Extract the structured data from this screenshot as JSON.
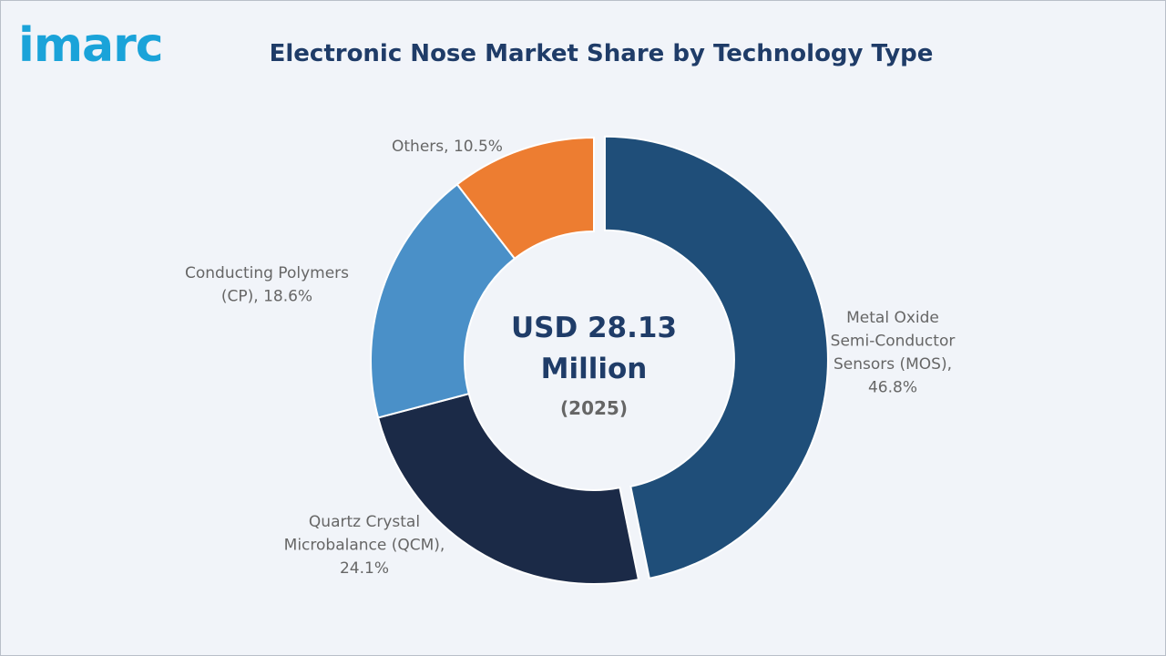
{
  "brand": {
    "logo_text": "imarc",
    "logo_color": "#1aa3d9"
  },
  "chart_data": {
    "type": "pie",
    "variant": "donut",
    "title": "Electronic Nose Market Share by Technology Type",
    "center": {
      "value": "USD 28.13 Million",
      "value_line1": "USD 28.13",
      "value_line2": "Million",
      "year": "(2025)"
    },
    "unit": "%",
    "slices": [
      {
        "name": "Metal Oxide Semi-Conductor Sensors (MOS)",
        "value": 46.8,
        "color": "#1f4e79",
        "exploded": true,
        "label_lines": [
          "Metal Oxide",
          "Semi-Conductor",
          "Sensors (MOS),",
          "46.8%"
        ]
      },
      {
        "name": "Quartz Crystal Microbalance (QCM)",
        "value": 24.1,
        "color": "#1b2a47",
        "exploded": false,
        "label_lines": [
          "Quartz Crystal",
          "Microbalance (QCM),",
          "24.1%"
        ]
      },
      {
        "name": "Conducting Polymers (CP)",
        "value": 18.6,
        "color": "#4a90c8",
        "exploded": false,
        "label_lines": [
          "Conducting Polymers",
          "(CP), 18.6%"
        ]
      },
      {
        "name": "Others",
        "value": 10.5,
        "color": "#ed7d31",
        "exploded": false,
        "label_lines": [
          "Others, 10.5%"
        ]
      }
    ]
  }
}
